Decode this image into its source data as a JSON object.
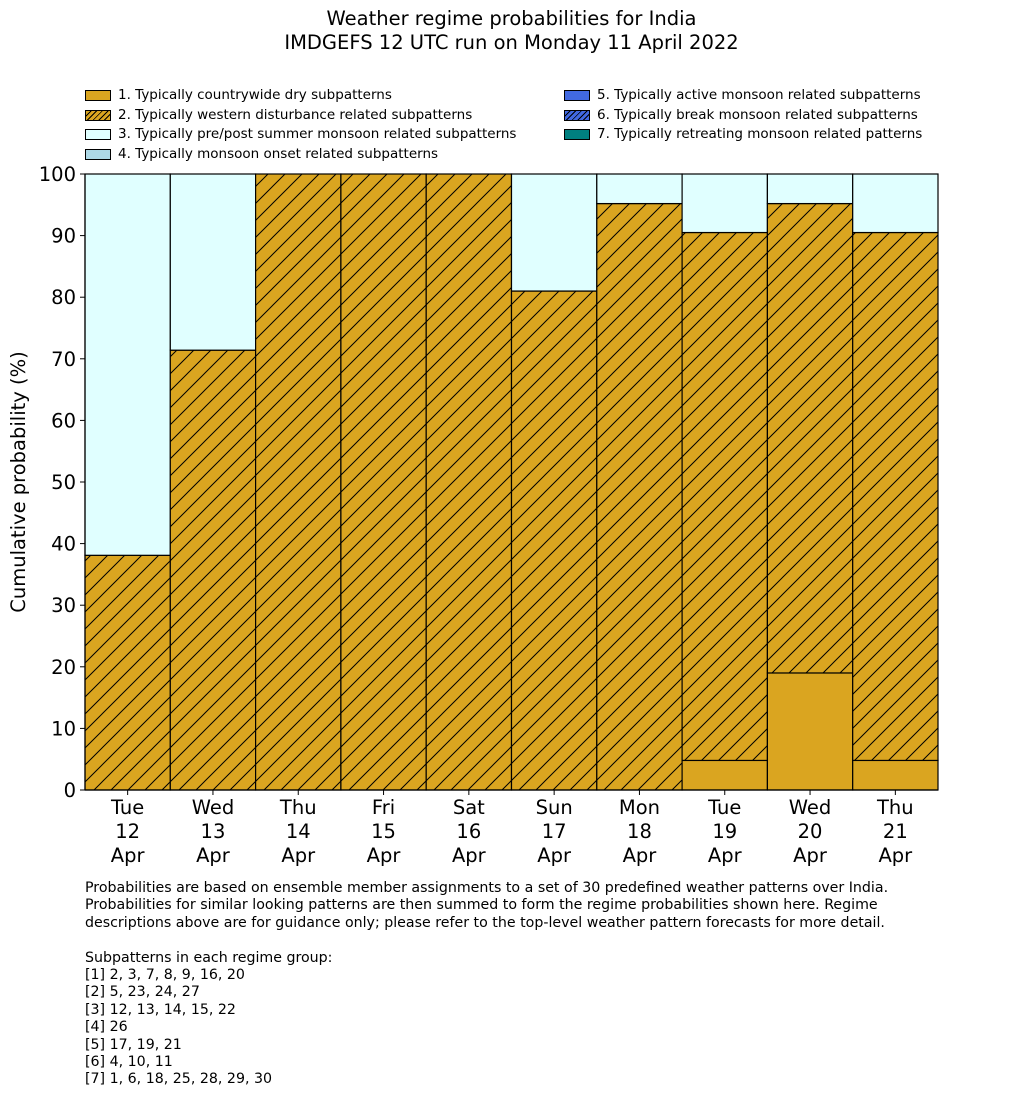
{
  "title": {
    "line1": "Weather regime probabilities for India",
    "line2": "IMDGEFS 12 UTC run on Monday 11 April 2022"
  },
  "colors": {
    "regime1": "#DAA520",
    "regime2": "#DAA520",
    "regime3": "#E0FFFF",
    "regime4": "#ADD8E6",
    "regime5": "#4169E1",
    "regime6": "#4169E1",
    "regime7": "#008080"
  },
  "legend": [
    {
      "label": "1. Typically countrywide dry subpatterns",
      "hatch": false,
      "color": "#DAA520"
    },
    {
      "label": "2. Typically western disturbance related subpatterns",
      "hatch": true,
      "color": "#DAA520"
    },
    {
      "label": "3. Typically pre/post summer monsoon related subpatterns",
      "hatch": false,
      "color": "#E0FFFF"
    },
    {
      "label": "4. Typically monsoon onset related subpatterns",
      "hatch": false,
      "color": "#ADD8E6"
    },
    {
      "label": "5. Typically active monsoon related subpatterns",
      "hatch": false,
      "color": "#4169E1"
    },
    {
      "label": "6. Typically break monsoon related subpatterns",
      "hatch": true,
      "color": "#4169E1"
    },
    {
      "label": "7. Typically retreating monsoon related patterns",
      "hatch": false,
      "color": "#008080"
    }
  ],
  "chart_data": {
    "type": "bar",
    "stacked": true,
    "title": "Weather regime probabilities for India",
    "subtitle": "IMDGEFS 12 UTC run on Monday 11 April 2022",
    "xlabel": "",
    "ylabel": "Cumulative probability (%)",
    "ylim": [
      0,
      100
    ],
    "yticks": [
      0,
      10,
      20,
      30,
      40,
      50,
      60,
      70,
      80,
      90,
      100
    ],
    "categories": [
      [
        "Tue",
        "12",
        "Apr"
      ],
      [
        "Wed",
        "13",
        "Apr"
      ],
      [
        "Thu",
        "14",
        "Apr"
      ],
      [
        "Fri",
        "15",
        "Apr"
      ],
      [
        "Sat",
        "16",
        "Apr"
      ],
      [
        "Sun",
        "17",
        "Apr"
      ],
      [
        "Mon",
        "18",
        "Apr"
      ],
      [
        "Tue",
        "19",
        "Apr"
      ],
      [
        "Wed",
        "20",
        "Apr"
      ],
      [
        "Thu",
        "21",
        "Apr"
      ]
    ],
    "series": [
      {
        "name": "1. Typically countrywide dry subpatterns",
        "values": [
          0,
          0,
          0,
          0,
          0,
          0,
          0,
          4.8,
          19.0,
          4.8
        ]
      },
      {
        "name": "2. Typically western disturbance related subpatterns",
        "values": [
          38.1,
          71.4,
          100,
          100,
          100,
          81.0,
          95.2,
          85.7,
          76.2,
          85.7
        ]
      },
      {
        "name": "3. Typically pre/post summer monsoon related subpatterns",
        "values": [
          61.9,
          28.6,
          0,
          0,
          0,
          19.0,
          4.8,
          9.5,
          4.8,
          9.5
        ]
      },
      {
        "name": "4. Typically monsoon onset related subpatterns",
        "values": [
          0,
          0,
          0,
          0,
          0,
          0,
          0,
          0,
          0,
          0
        ]
      },
      {
        "name": "5. Typically active monsoon related subpatterns",
        "values": [
          0,
          0,
          0,
          0,
          0,
          0,
          0,
          0,
          0,
          0
        ]
      },
      {
        "name": "6. Typically break monsoon related subpatterns",
        "values": [
          0,
          0,
          0,
          0,
          0,
          0,
          0,
          0,
          0,
          0
        ]
      },
      {
        "name": "7. Typically retreating monsoon related patterns",
        "values": [
          0,
          0,
          0,
          0,
          0,
          0,
          0,
          0,
          0,
          0
        ]
      }
    ],
    "legend_position": "top",
    "grid": false
  },
  "footnote": {
    "lines": [
      "Probabilities are based on ensemble member assignments to a set of 30 predefined weather patterns over India.",
      "Probabilities for similar looking patterns are then summed to form the regime probabilities shown here. Regime",
      "descriptions above are for guidance only; please refer to the top-level weather pattern forecasts for more detail.",
      "",
      "Subpatterns in each regime group:",
      "[1] 2, 3, 7, 8, 9, 16, 20",
      "[2] 5, 23, 24, 27",
      "[3] 12, 13, 14, 15, 22",
      "[4] 26",
      "[5] 17, 19, 21",
      "[6] 4, 10, 11",
      "[7] 1, 6, 18, 25, 28, 29, 30"
    ]
  }
}
